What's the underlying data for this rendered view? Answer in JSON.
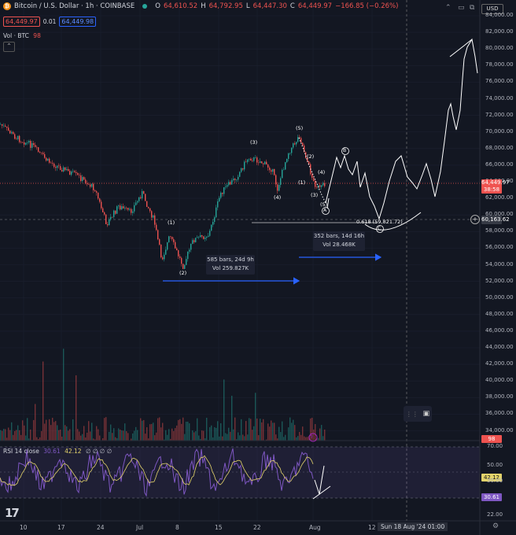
{
  "header": {
    "symbol": "Bitcoin / U.S. Dollar · 1h · COINBASE",
    "open_label": "O",
    "open": "64,610.52",
    "high_label": "H",
    "high": "64,792.95",
    "low_label": "L",
    "low": "64,447.30",
    "close_label": "C",
    "close": "64,449.97",
    "change": "−166.85 (−0.26%)",
    "sell_price": "64,449.97",
    "spread": "0.01",
    "buy_price": "64,449.98"
  },
  "volume_label": "Vol · BTC",
  "volume_value": "98",
  "currency": "USD",
  "price_axis": [
    "84,000.00",
    "82,000.00",
    "80,000.00",
    "78,000.00",
    "76,000.00",
    "74,000.00",
    "72,000.00",
    "70,000.00",
    "68,000.00",
    "66,000.00",
    "64,000.00",
    "62,000.00",
    "60,000.00",
    "58,000.00",
    "56,000.00",
    "54,000.00",
    "52,000.00",
    "50,000.00",
    "48,000.00",
    "46,000.00",
    "44,000.00",
    "42,000.00",
    "40,000.00",
    "38,000.00",
    "36,000.00",
    "34,000.00"
  ],
  "rsi_axis": [
    "70.00",
    "50.00",
    "30.00",
    "22.00"
  ],
  "current_price_tag": "64,449.97",
  "countdown": "38:58",
  "crosshair_price": "60,163.62",
  "volume_tag": "98",
  "rsi": {
    "label": "RSI 14 close",
    "value1": "30.61",
    "value2": "42.12",
    "extra": "∅ ∅ ∅ ∅",
    "tag_high": "42.12",
    "tag_low": "30.61"
  },
  "time_axis": [
    "10",
    "17",
    "24",
    "Jul",
    "8",
    "15",
    "22",
    "Aug",
    "12"
  ],
  "crosshair_date": "Sun 18 Aug '24   01:00",
  "measure1": {
    "bars": "585 bars, 24d 9h",
    "vol": "Vol 259.827K"
  },
  "measure2": {
    "bars": "352 bars, 14d 16h",
    "vol": "Vol 28.468K"
  },
  "fib_label": "0.618 (59,821.72)",
  "waves": {
    "w1": "(1)",
    "w2": "(2)",
    "w3": "(3)",
    "w4": "(4)",
    "w5": "(5)",
    "A": "A",
    "B": "B",
    "C": "C"
  },
  "colors": {
    "bg": "#131722",
    "up": "#26a69a",
    "down": "#ef5350",
    "rsi": "#7e57c2",
    "accent": "#2962ff"
  }
}
